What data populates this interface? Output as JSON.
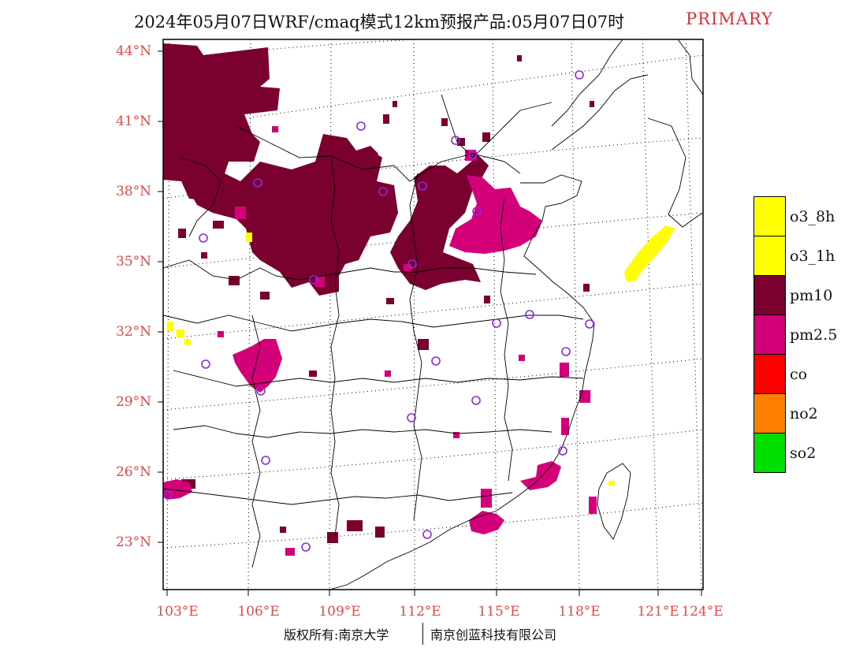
{
  "title": {
    "main": "2024年05月07日WRF/cmaq模式12km预报产品:05月07日07时",
    "tag": "PRIMARY"
  },
  "colors": {
    "pm10": "#7a0030",
    "pm25": "#d4007a",
    "o3": "#ffff00",
    "co": "#ff0000",
    "no2": "#ff7f00",
    "so2": "#00e000",
    "axis_label": "#e84848",
    "station_circle": "#8a2be2"
  },
  "axes": {
    "latitude_labels": [
      "44°N",
      "41°N",
      "38°N",
      "35°N",
      "32°N",
      "29°N",
      "26°N",
      "23°N"
    ],
    "longitude_labels": [
      "103°E",
      "106°E",
      "109°E",
      "112°E",
      "115°E",
      "118°E",
      "121°E",
      "124°E"
    ]
  },
  "legend": {
    "items": [
      {
        "label": "o3_8h",
        "color": "#ffff00"
      },
      {
        "label": "o3_1h",
        "color": "#ffff00"
      },
      {
        "label": "pm10",
        "color": "#7a0030"
      },
      {
        "label": "pm2.5",
        "color": "#d4007a"
      },
      {
        "label": "co",
        "color": "#ff0000"
      },
      {
        "label": "no2",
        "color": "#ff7f00"
      },
      {
        "label": "so2",
        "color": "#00e000"
      }
    ]
  },
  "footer": {
    "left": "版权所有:南京大学",
    "right": "南京创蓝科技有限公司"
  }
}
